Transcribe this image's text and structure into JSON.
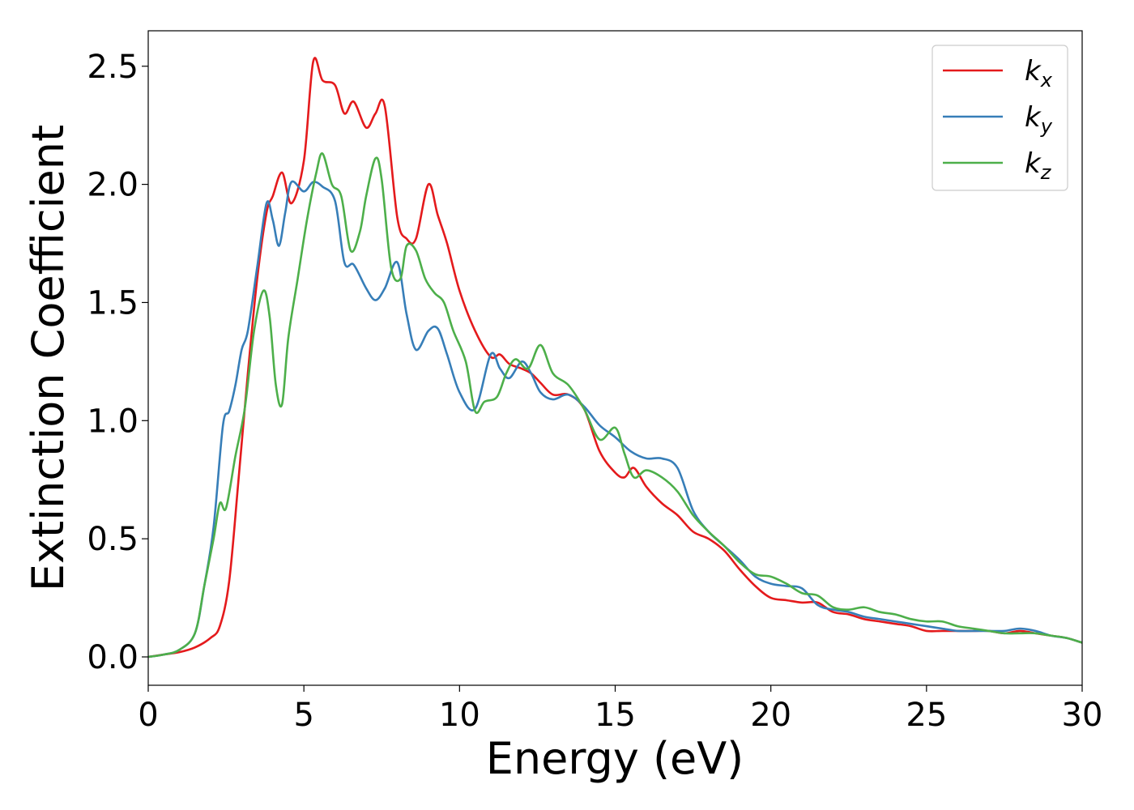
{
  "chart_data": {
    "type": "line",
    "title": "",
    "xlabel": "Energy (eV)",
    "ylabel": "Extinction Coefficient",
    "xlim": [
      0,
      30
    ],
    "ylim": [
      -0.12,
      2.65
    ],
    "xticks": [
      0,
      5,
      10,
      15,
      20,
      25,
      30
    ],
    "xtick_labels": [
      "0",
      "5",
      "10",
      "15",
      "20",
      "25",
      "30"
    ],
    "yticks": [
      0.0,
      0.5,
      1.0,
      1.5,
      2.0,
      2.5
    ],
    "ytick_labels": [
      "0.0",
      "0.5",
      "1.0",
      "1.5",
      "2.0",
      "2.5"
    ],
    "grid": false,
    "legend": "top-right",
    "series": [
      {
        "name": "k_x",
        "label_main": "k",
        "label_sub": "x",
        "color": "#e41a1c",
        "x": [
          0,
          0.5,
          1,
          1.5,
          2,
          2.3,
          2.6,
          2.9,
          3.2,
          3.5,
          3.8,
          4.0,
          4.3,
          4.6,
          5.0,
          5.3,
          5.6,
          6.0,
          6.3,
          6.6,
          7.0,
          7.3,
          7.6,
          8.0,
          8.3,
          8.6,
          9.0,
          9.3,
          9.6,
          10.0,
          10.5,
          11.0,
          11.3,
          11.6,
          12.0,
          12.3,
          12.6,
          13.0,
          13.5,
          14.0,
          14.5,
          15.0,
          15.3,
          15.6,
          16.0,
          16.5,
          17.0,
          17.5,
          18.0,
          18.5,
          19.0,
          19.5,
          20.0,
          20.5,
          21.0,
          21.5,
          22.0,
          22.5,
          23.0,
          23.5,
          24.0,
          24.5,
          25.0,
          25.5,
          26.0,
          26.5,
          27.0,
          27.5,
          28.0,
          28.5,
          29.0,
          29.5,
          30.0
        ],
        "y": [
          0.0,
          0.01,
          0.02,
          0.04,
          0.08,
          0.13,
          0.32,
          0.75,
          1.2,
          1.6,
          1.88,
          1.95,
          2.05,
          1.92,
          2.1,
          2.52,
          2.44,
          2.42,
          2.3,
          2.35,
          2.24,
          2.3,
          2.33,
          1.86,
          1.77,
          1.77,
          2.0,
          1.87,
          1.75,
          1.55,
          1.38,
          1.27,
          1.28,
          1.24,
          1.22,
          1.2,
          1.16,
          1.11,
          1.11,
          1.05,
          0.87,
          0.78,
          0.76,
          0.8,
          0.72,
          0.65,
          0.6,
          0.53,
          0.5,
          0.45,
          0.37,
          0.3,
          0.25,
          0.24,
          0.23,
          0.23,
          0.19,
          0.18,
          0.16,
          0.15,
          0.14,
          0.13,
          0.11,
          0.11,
          0.11,
          0.11,
          0.11,
          0.1,
          0.11,
          0.1,
          0.09,
          0.08,
          0.06
        ]
      },
      {
        "name": "k_y",
        "label_main": "k",
        "label_sub": "y",
        "color": "#377eb8",
        "x": [
          0,
          0.5,
          1,
          1.5,
          1.8,
          2.1,
          2.4,
          2.6,
          2.8,
          3.0,
          3.2,
          3.5,
          3.8,
          4.0,
          4.2,
          4.4,
          4.6,
          5.0,
          5.3,
          5.6,
          6.0,
          6.3,
          6.6,
          7.0,
          7.3,
          7.6,
          8.0,
          8.3,
          8.6,
          9.0,
          9.3,
          9.6,
          10.0,
          10.5,
          11.0,
          11.3,
          11.6,
          12.0,
          12.3,
          12.6,
          13.0,
          13.5,
          14.0,
          14.5,
          15.0,
          15.5,
          16.0,
          16.5,
          17.0,
          17.5,
          18.0,
          18.5,
          19.0,
          19.5,
          20.0,
          20.5,
          21.0,
          21.5,
          22.0,
          22.5,
          23.0,
          23.5,
          24.0,
          24.5,
          25.0,
          25.5,
          26.0,
          26.5,
          27.0,
          27.5,
          28.0,
          28.5,
          29.0,
          29.5,
          30.0
        ],
        "y": [
          0.0,
          0.01,
          0.03,
          0.1,
          0.3,
          0.55,
          0.98,
          1.04,
          1.15,
          1.3,
          1.38,
          1.65,
          1.92,
          1.85,
          1.74,
          1.88,
          2.01,
          1.97,
          2.01,
          1.99,
          1.93,
          1.67,
          1.66,
          1.56,
          1.51,
          1.56,
          1.67,
          1.45,
          1.3,
          1.38,
          1.39,
          1.28,
          1.12,
          1.05,
          1.28,
          1.22,
          1.18,
          1.25,
          1.2,
          1.12,
          1.09,
          1.11,
          1.06,
          0.98,
          0.93,
          0.87,
          0.84,
          0.84,
          0.8,
          0.62,
          0.53,
          0.47,
          0.41,
          0.34,
          0.31,
          0.3,
          0.29,
          0.22,
          0.2,
          0.19,
          0.17,
          0.16,
          0.15,
          0.14,
          0.13,
          0.12,
          0.11,
          0.11,
          0.11,
          0.11,
          0.12,
          0.11,
          0.09,
          0.08,
          0.06
        ]
      },
      {
        "name": "k_z",
        "label_main": "k",
        "label_sub": "z",
        "color": "#4daf4a",
        "x": [
          0,
          0.5,
          1,
          1.5,
          1.8,
          2.1,
          2.3,
          2.5,
          2.8,
          3.1,
          3.4,
          3.7,
          3.9,
          4.1,
          4.3,
          4.5,
          4.8,
          5.1,
          5.4,
          5.6,
          5.9,
          6.2,
          6.5,
          6.8,
          7.0,
          7.3,
          7.5,
          7.8,
          8.1,
          8.3,
          8.6,
          8.9,
          9.2,
          9.5,
          9.8,
          10.2,
          10.5,
          10.8,
          11.2,
          11.5,
          11.8,
          12.2,
          12.6,
          13.0,
          13.5,
          14.0,
          14.5,
          15.0,
          15.3,
          15.6,
          16.0,
          16.5,
          17.0,
          17.5,
          18.0,
          18.5,
          19.0,
          19.5,
          20.0,
          20.5,
          21.0,
          21.5,
          22.0,
          22.5,
          23.0,
          23.5,
          24.0,
          24.5,
          25.0,
          25.5,
          26.0,
          26.5,
          27.0,
          27.5,
          28.0,
          28.5,
          29.0,
          29.5,
          30.0
        ],
        "y": [
          0.0,
          0.01,
          0.03,
          0.1,
          0.3,
          0.5,
          0.65,
          0.63,
          0.85,
          1.05,
          1.38,
          1.55,
          1.44,
          1.15,
          1.07,
          1.35,
          1.6,
          1.85,
          2.05,
          2.13,
          2.0,
          1.95,
          1.72,
          1.8,
          1.95,
          2.11,
          2.02,
          1.65,
          1.6,
          1.74,
          1.72,
          1.6,
          1.54,
          1.5,
          1.38,
          1.25,
          1.04,
          1.08,
          1.1,
          1.2,
          1.26,
          1.22,
          1.32,
          1.2,
          1.15,
          1.05,
          0.92,
          0.97,
          0.86,
          0.76,
          0.79,
          0.76,
          0.7,
          0.6,
          0.53,
          0.47,
          0.4,
          0.35,
          0.34,
          0.31,
          0.27,
          0.26,
          0.21,
          0.2,
          0.21,
          0.19,
          0.18,
          0.16,
          0.15,
          0.15,
          0.13,
          0.12,
          0.11,
          0.1,
          0.1,
          0.1,
          0.09,
          0.08,
          0.06
        ]
      }
    ]
  }
}
